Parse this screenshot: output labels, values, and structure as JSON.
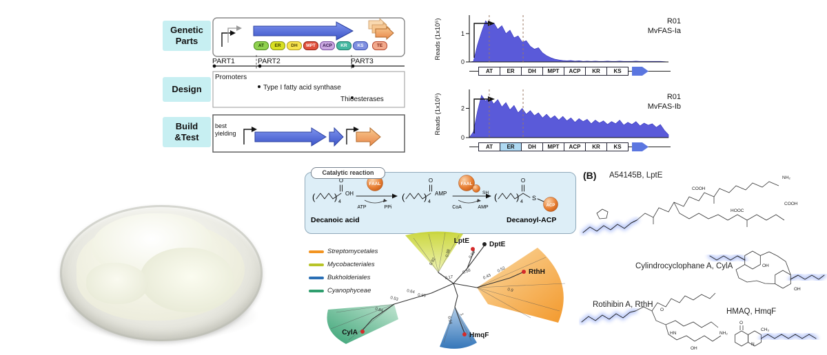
{
  "workflow": {
    "row_labels": [
      "Genetic Parts",
      "Design",
      "Build &Test"
    ],
    "parts": [
      "PART1",
      "PART2",
      "PART3"
    ],
    "design_items": [
      "Promoters",
      "Type I fatty acid synthase",
      "Thioesterases"
    ],
    "build_note": "best yielding",
    "domains": [
      {
        "label": "AT",
        "bg": "#8fd14f",
        "border": "#4e8a1e",
        "fg": "#173a00"
      },
      {
        "label": "ER",
        "bg": "#d9e021",
        "border": "#8a941c",
        "fg": "#3a3d00"
      },
      {
        "label": "DH",
        "bg": "#f7e34d",
        "border": "#b09a1f",
        "fg": "#4a3c00"
      },
      {
        "label": "MPT",
        "bg": "#e0503c",
        "border": "#8f1f12",
        "fg": "#ffffff"
      },
      {
        "label": "ACP",
        "bg": "#c9a7e0",
        "border": "#7a4fa0",
        "fg": "#2e1448"
      },
      {
        "label": "KR",
        "bg": "#45b8a1",
        "border": "#1d7a68",
        "fg": "#ffffff"
      },
      {
        "label": "KS",
        "bg": "#7f8fe0",
        "border": "#3c4fae",
        "fg": "#ffffff"
      }
    ],
    "te": {
      "label": "TE",
      "bg": "#f2a98c",
      "border": "#b5452b"
    }
  },
  "chart_data": [
    {
      "type": "area",
      "title": "R01",
      "subtitle": "MvFAS-Ia",
      "ylabel": "Reads (1x10⁵)",
      "ylim": [
        0,
        1.6
      ],
      "ytick_labels": [
        "1",
        "0"
      ],
      "ytick_values": [
        1,
        0
      ],
      "dashed_lines": [
        0.1,
        0.27
      ],
      "fill": "#5a5ad9",
      "values": [
        0,
        0.02,
        0.6,
        1.05,
        1.45,
        1.3,
        1.38,
        1.15,
        1.28,
        1.0,
        1.12,
        0.85,
        0.92,
        0.7,
        0.75,
        0.55,
        0.45,
        0.5,
        0.32,
        0.22,
        0.15,
        0.1,
        0.07,
        0.05,
        0.04,
        0.05,
        0.03,
        0.04,
        0.02,
        0.03,
        0.02,
        0.03,
        0.02,
        0.02,
        0.03,
        0.02,
        0.02,
        0.03,
        0.02,
        0.02,
        0.02,
        0.03,
        0.02,
        0.02,
        0.02,
        0.02,
        0.02,
        0.02,
        0.01,
        0
      ],
      "domains": [
        "AT",
        "ER",
        "DH",
        "MPT",
        "ACP",
        "KR",
        "KS"
      ],
      "highlight_domain": ""
    },
    {
      "type": "area",
      "title": "R01",
      "subtitle": "MvFAS-Ib",
      "ylabel": "Reads (1x10⁵)",
      "ylim": [
        0,
        3.2
      ],
      "ytick_labels": [
        "2",
        "0"
      ],
      "ytick_values": [
        2,
        0
      ],
      "dashed_lines": [
        0.1,
        0.27
      ],
      "fill": "#5a5ad9",
      "values": [
        0,
        0.4,
        1.8,
        2.9,
        2.5,
        2.75,
        2.3,
        2.6,
        2.1,
        2.4,
        1.9,
        2.2,
        1.7,
        2.0,
        1.6,
        1.85,
        1.5,
        1.7,
        1.35,
        1.6,
        1.3,
        1.5,
        1.2,
        1.45,
        1.15,
        1.35,
        1.05,
        1.3,
        1.1,
        1.25,
        0.95,
        1.2,
        1.0,
        1.15,
        0.9,
        1.1,
        0.95,
        1.2,
        0.85,
        1.05,
        0.9,
        1.1,
        0.8,
        1.0,
        0.85,
        0.95,
        0.7,
        0.9,
        0.5,
        0.2
      ],
      "domains": [
        "AT",
        "ER",
        "DH",
        "MPT",
        "ACP",
        "KR",
        "KS"
      ],
      "highlight_domain": "ER"
    }
  ],
  "catalytic": {
    "title": "Catalytic reaction",
    "substrate_label": "Decanoic acid",
    "intermediate_suffix": "AMP",
    "product_label": "Decanoyl-ACP",
    "enzyme": "FAAL",
    "carrier": "ACP",
    "step1_below": [
      "ATP",
      "PPi"
    ],
    "step2_below": [
      "CoA",
      "AMP"
    ],
    "thiol": "SH",
    "hydroxyl": "OH",
    "oxygen": "O",
    "sulfur": "S",
    "repeat_subscript": "4"
  },
  "tree": {
    "legend": [
      {
        "label": "Streptomycetales",
        "color": "#f29422"
      },
      {
        "label": "Mycobacteriales",
        "color": "#b8c428"
      },
      {
        "label": "Bukholderiales",
        "color": "#2a6fb5"
      },
      {
        "label": "Cyanophyceae",
        "color": "#2f9e6e"
      }
    ],
    "taxa": [
      {
        "label": "LptE",
        "marker": "#d42a2a"
      },
      {
        "label": "DptE",
        "marker": "#222222"
      },
      {
        "label": "RthH",
        "marker": "#d42a2a"
      },
      {
        "label": "HmqF",
        "marker": "#d42a2a"
      },
      {
        "label": "CylA",
        "marker": "#d42a2a"
      }
    ],
    "support_values": [
      "0.92",
      "0.98",
      "0.96",
      "0.58",
      "0.17",
      "0.43",
      "0.52",
      "0.9",
      "0.64",
      "0.53",
      "0.84",
      "0.96",
      "0.94",
      "1"
    ]
  },
  "panelB": {
    "label": "(B)",
    "compounds": [
      {
        "name": "A54145B, LptE",
        "atoms": [
          "NH₂",
          "COOH",
          "HOOC",
          "COOH"
        ]
      },
      {
        "name": "Cylindrocyclophane A, CylA",
        "atoms": [
          "OH",
          "OH"
        ]
      },
      {
        "name": "Rotihibin A, RthH",
        "atoms": [
          "O",
          "HN",
          "OH",
          "NH₂"
        ]
      },
      {
        "name": "HMAQ, HmqF",
        "atoms": [
          "O",
          "N",
          "CH₃"
        ]
      }
    ]
  }
}
